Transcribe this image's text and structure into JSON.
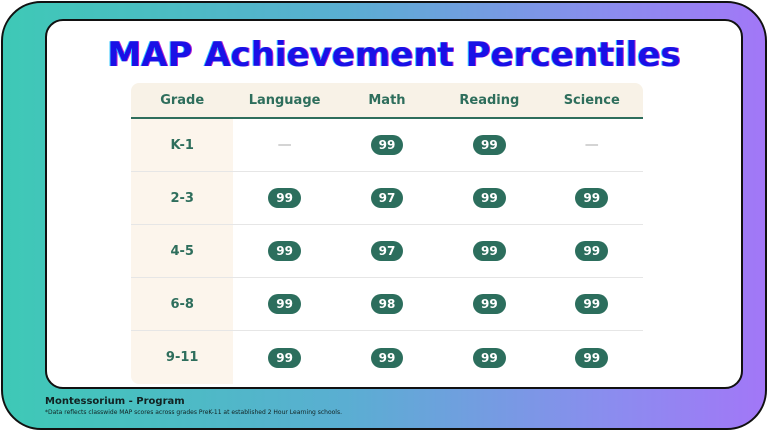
{
  "title": "MAP Achievement Percentiles",
  "table": {
    "headers": [
      "Grade",
      "Language",
      "Math",
      "Reading",
      "Science"
    ],
    "rows": [
      [
        "K-1",
        "—",
        "99",
        "99",
        "—"
      ],
      [
        "2-3",
        "99",
        "97",
        "99",
        "99"
      ],
      [
        "4-5",
        "99",
        "97",
        "99",
        "99"
      ],
      [
        "6-8",
        "99",
        "98",
        "99",
        "99"
      ],
      [
        "9-11",
        "99",
        "99",
        "99",
        "99"
      ]
    ]
  },
  "footer": {
    "program": "Montessorium - Program",
    "note": "*Data reflects classwide MAP scores across grades PreK-11 at established 2 Hour Learning schools."
  },
  "colors": {
    "accent": "#2c6e5d",
    "title": "#1a10e6"
  }
}
